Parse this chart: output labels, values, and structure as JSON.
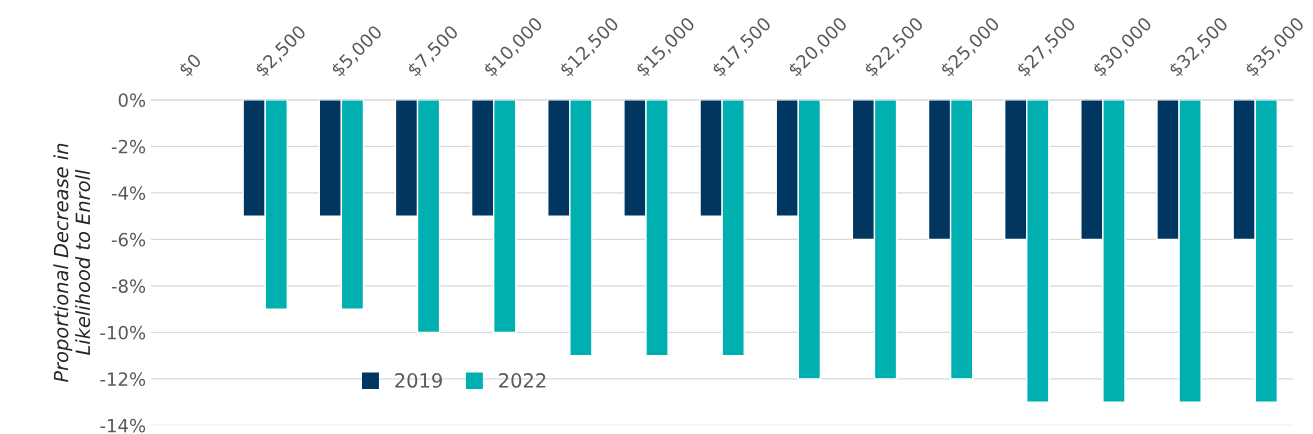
{
  "chart_data": {
    "type": "bar",
    "ylabel": "Proportional Decrease in\nLikelihood to Enroll",
    "categories": [
      "$0",
      "$2,500",
      "$5,000",
      "$7,500",
      "$10,000",
      "$12,500",
      "$15,000",
      "$17,500",
      "$20,000",
      "$22,500",
      "$25,000",
      "$27,500",
      "$30,000",
      "$32,500",
      "$35,000"
    ],
    "series": [
      {
        "name": "2019",
        "color": "#003660",
        "values": [
          null,
          -5,
          -5,
          -5,
          -5,
          -5,
          -5,
          -5,
          -5,
          -6,
          -6,
          -6,
          -6,
          -6,
          -6
        ]
      },
      {
        "name": "2022",
        "color": "#00b0b0",
        "values": [
          null,
          -9,
          -9,
          -10,
          -10,
          -11,
          -11,
          -11,
          -12,
          -12,
          -12,
          -13,
          -13,
          -13,
          -13
        ]
      }
    ],
    "ylim": [
      -14,
      0
    ],
    "yticks": [
      {
        "value": 0,
        "label": "0%"
      },
      {
        "value": -2,
        "label": "-2%"
      },
      {
        "value": -4,
        "label": "-4%"
      },
      {
        "value": -6,
        "label": "-6%"
      },
      {
        "value": -8,
        "label": "-8%"
      },
      {
        "value": -10,
        "label": "-10%"
      },
      {
        "value": -12,
        "label": "-12%"
      },
      {
        "value": -14,
        "label": "-14%"
      }
    ],
    "grid": "y",
    "legend": "bottom left"
  }
}
